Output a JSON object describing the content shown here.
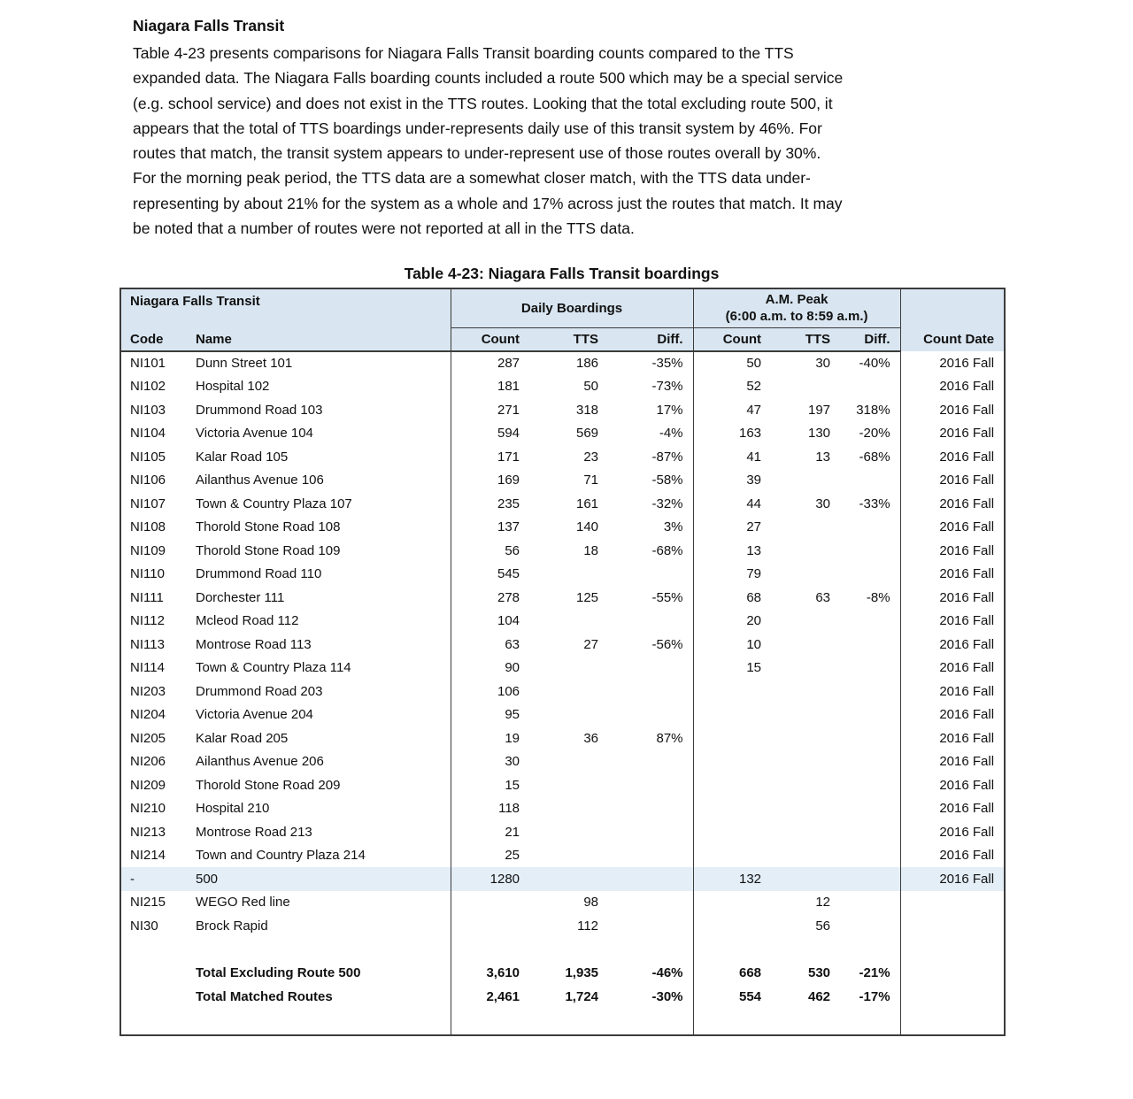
{
  "document": {
    "heading": "Niagara Falls Transit",
    "paragraph_lines": [
      "Table 4-23 presents comparisons for Niagara Falls Transit boarding counts compared to the TTS",
      "expanded data. The Niagara Falls boarding counts included a route 500 which may be a special service",
      "(e.g. school service) and does not exist in the TTS routes. Looking that the total excluding route 500, it",
      "appears that the total of TTS boardings under-represents daily use of this transit system by 46%. For",
      "routes that match, the transit system appears to under-represent use of those routes overall by 30%.",
      "For the morning peak period, the TTS data are a somewhat closer match, with the TTS data under-",
      "representing by about 21% for the system as a whole and 17% across just the routes that match. It may",
      "be noted that a number of routes were not reported at all in the TTS data."
    ]
  },
  "table": {
    "title": "Table 4-23: Niagara Falls Transit boardings",
    "header": {
      "group1": "Niagara Falls Transit",
      "daily": "Daily Boardings",
      "am_line1": "A.M. Peak",
      "am_line2": "(6:00 a.m. to 8:59 a.m.)",
      "code": "Code",
      "name": "Name",
      "count": "Count",
      "tts": "TTS",
      "diff": "Diff.",
      "count_date": "Count Date"
    },
    "rows": [
      {
        "code": "NI101",
        "name": "Dunn Street 101",
        "d_count": "287",
        "d_tts": "186",
        "d_diff": "-35%",
        "a_count": "50",
        "a_tts": "30",
        "a_diff": "-40%",
        "date": "2016 Fall",
        "highlight": false
      },
      {
        "code": "NI102",
        "name": "Hospital 102",
        "d_count": "181",
        "d_tts": "50",
        "d_diff": "-73%",
        "a_count": "52",
        "a_tts": "",
        "a_diff": "",
        "date": "2016 Fall",
        "highlight": false
      },
      {
        "code": "NI103",
        "name": "Drummond Road 103",
        "d_count": "271",
        "d_tts": "318",
        "d_diff": "17%",
        "a_count": "47",
        "a_tts": "197",
        "a_diff": "318%",
        "date": "2016 Fall",
        "highlight": false
      },
      {
        "code": "NI104",
        "name": "Victoria Avenue 104",
        "d_count": "594",
        "d_tts": "569",
        "d_diff": "-4%",
        "a_count": "163",
        "a_tts": "130",
        "a_diff": "-20%",
        "date": "2016 Fall",
        "highlight": false
      },
      {
        "code": "NI105",
        "name": "Kalar Road 105",
        "d_count": "171",
        "d_tts": "23",
        "d_diff": "-87%",
        "a_count": "41",
        "a_tts": "13",
        "a_diff": "-68%",
        "date": "2016 Fall",
        "highlight": false
      },
      {
        "code": "NI106",
        "name": "Ailanthus Avenue 106",
        "d_count": "169",
        "d_tts": "71",
        "d_diff": "-58%",
        "a_count": "39",
        "a_tts": "",
        "a_diff": "",
        "date": "2016 Fall",
        "highlight": false
      },
      {
        "code": "NI107",
        "name": "Town & Country Plaza 107",
        "d_count": "235",
        "d_tts": "161",
        "d_diff": "-32%",
        "a_count": "44",
        "a_tts": "30",
        "a_diff": "-33%",
        "date": "2016 Fall",
        "highlight": false
      },
      {
        "code": "NI108",
        "name": "Thorold Stone Road 108",
        "d_count": "137",
        "d_tts": "140",
        "d_diff": "3%",
        "a_count": "27",
        "a_tts": "",
        "a_diff": "",
        "date": "2016 Fall",
        "highlight": false
      },
      {
        "code": "NI109",
        "name": "Thorold Stone Road 109",
        "d_count": "56",
        "d_tts": "18",
        "d_diff": "-68%",
        "a_count": "13",
        "a_tts": "",
        "a_diff": "",
        "date": "2016 Fall",
        "highlight": false
      },
      {
        "code": "NI110",
        "name": "Drummond Road 110",
        "d_count": "545",
        "d_tts": "",
        "d_diff": "",
        "a_count": "79",
        "a_tts": "",
        "a_diff": "",
        "date": "2016 Fall",
        "highlight": false
      },
      {
        "code": "NI111",
        "name": "Dorchester 111",
        "d_count": "278",
        "d_tts": "125",
        "d_diff": "-55%",
        "a_count": "68",
        "a_tts": "63",
        "a_diff": "-8%",
        "date": "2016 Fall",
        "highlight": false
      },
      {
        "code": "NI112",
        "name": "Mcleod Road 112",
        "d_count": "104",
        "d_tts": "",
        "d_diff": "",
        "a_count": "20",
        "a_tts": "",
        "a_diff": "",
        "date": "2016 Fall",
        "highlight": false
      },
      {
        "code": "NI113",
        "name": "Montrose Road 113",
        "d_count": "63",
        "d_tts": "27",
        "d_diff": "-56%",
        "a_count": "10",
        "a_tts": "",
        "a_diff": "",
        "date": "2016 Fall",
        "highlight": false
      },
      {
        "code": "NI114",
        "name": "Town & Country Plaza 114",
        "d_count": "90",
        "d_tts": "",
        "d_diff": "",
        "a_count": "15",
        "a_tts": "",
        "a_diff": "",
        "date": "2016 Fall",
        "highlight": false
      },
      {
        "code": "NI203",
        "name": "Drummond Road 203",
        "d_count": "106",
        "d_tts": "",
        "d_diff": "",
        "a_count": "",
        "a_tts": "",
        "a_diff": "",
        "date": "2016 Fall",
        "highlight": false
      },
      {
        "code": "NI204",
        "name": "Victoria Avenue 204",
        "d_count": "95",
        "d_tts": "",
        "d_diff": "",
        "a_count": "",
        "a_tts": "",
        "a_diff": "",
        "date": "2016 Fall",
        "highlight": false
      },
      {
        "code": "NI205",
        "name": "Kalar Road 205",
        "d_count": "19",
        "d_tts": "36",
        "d_diff": "87%",
        "a_count": "",
        "a_tts": "",
        "a_diff": "",
        "date": "2016 Fall",
        "highlight": false
      },
      {
        "code": "NI206",
        "name": "Ailanthus Avenue 206",
        "d_count": "30",
        "d_tts": "",
        "d_diff": "",
        "a_count": "",
        "a_tts": "",
        "a_diff": "",
        "date": "2016 Fall",
        "highlight": false
      },
      {
        "code": "NI209",
        "name": "Thorold Stone Road 209",
        "d_count": "15",
        "d_tts": "",
        "d_diff": "",
        "a_count": "",
        "a_tts": "",
        "a_diff": "",
        "date": "2016 Fall",
        "highlight": false
      },
      {
        "code": "NI210",
        "name": "Hospital 210",
        "d_count": "118",
        "d_tts": "",
        "d_diff": "",
        "a_count": "",
        "a_tts": "",
        "a_diff": "",
        "date": "2016 Fall",
        "highlight": false
      },
      {
        "code": "NI213",
        "name": "Montrose Road 213",
        "d_count": "21",
        "d_tts": "",
        "d_diff": "",
        "a_count": "",
        "a_tts": "",
        "a_diff": "",
        "date": "2016 Fall",
        "highlight": false
      },
      {
        "code": "NI214",
        "name": "Town and Country Plaza 214",
        "d_count": "25",
        "d_tts": "",
        "d_diff": "",
        "a_count": "",
        "a_tts": "",
        "a_diff": "",
        "date": "2016 Fall",
        "highlight": false
      },
      {
        "code": "-",
        "name": "500",
        "d_count": "1280",
        "d_tts": "",
        "d_diff": "",
        "a_count": "132",
        "a_tts": "",
        "a_diff": "",
        "date": "2016 Fall",
        "highlight": true
      },
      {
        "code": "NI215",
        "name": "WEGO Red line",
        "d_count": "",
        "d_tts": "98",
        "d_diff": "",
        "a_count": "",
        "a_tts": "12",
        "a_diff": "",
        "date": "",
        "highlight": false
      },
      {
        "code": "NI30",
        "name": "Brock Rapid",
        "d_count": "",
        "d_tts": "112",
        "d_diff": "",
        "a_count": "",
        "a_tts": "56",
        "a_diff": "",
        "date": "",
        "highlight": false
      }
    ],
    "totals": [
      {
        "label": "Total Excluding Route 500",
        "d_count": "3,610",
        "d_tts": "1,935",
        "d_diff": "-46%",
        "a_count": "668",
        "a_tts": "530",
        "a_diff": "-21%",
        "date": ""
      },
      {
        "label": "Total Matched Routes",
        "d_count": "2,461",
        "d_tts": "1,724",
        "d_diff": "-30%",
        "a_count": "554",
        "a_tts": "462",
        "a_diff": "-17%",
        "date": ""
      }
    ],
    "colors": {
      "header_bg": "#d9e6f1",
      "highlight_bg": "#e4eef7",
      "border": "#3b3b3b"
    }
  }
}
